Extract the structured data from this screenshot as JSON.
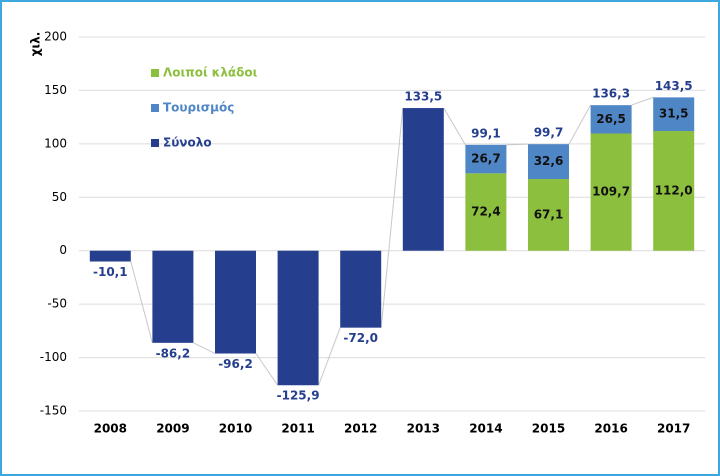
{
  "chart_data": {
    "type": "bar",
    "y_label": "χιλ.",
    "categories": [
      "2008",
      "2009",
      "2010",
      "2011",
      "2012",
      "2013",
      "2014",
      "2015",
      "2016",
      "2017"
    ],
    "series": [
      {
        "name": "Λοιποί κλάδοι",
        "color": "#8dbf3e",
        "stacked": true,
        "values": [
          null,
          null,
          null,
          null,
          null,
          null,
          72.4,
          67.1,
          109.7,
          112.0
        ],
        "value_labels": [
          null,
          null,
          null,
          null,
          null,
          null,
          "72,4",
          "67,1",
          "109,7",
          "112,0"
        ]
      },
      {
        "name": "Τουρισμός",
        "color": "#4f86c6",
        "stacked": true,
        "values": [
          null,
          null,
          null,
          null,
          null,
          null,
          26.7,
          32.6,
          26.5,
          31.5
        ],
        "value_labels": [
          null,
          null,
          null,
          null,
          null,
          null,
          "26,7",
          "32,6",
          "26,5",
          "31,5"
        ]
      },
      {
        "name": "Σύνολο",
        "color": "#253f8e",
        "stacked": false,
        "values": [
          -10.1,
          -86.2,
          -96.2,
          -125.9,
          -72.0,
          133.5,
          99.1,
          99.7,
          136.3,
          143.5
        ],
        "value_labels": [
          "-10,1",
          "-86,2",
          "-96,2",
          "-125,9",
          "-72,0",
          "133,5",
          "99,1",
          "99,7",
          "136,3",
          "143,5"
        ]
      }
    ],
    "ylim": [
      -150,
      200
    ],
    "yticks": [
      -150,
      -100,
      -50,
      0,
      50,
      100,
      150,
      200
    ],
    "grid": true,
    "legend": "top-left"
  }
}
